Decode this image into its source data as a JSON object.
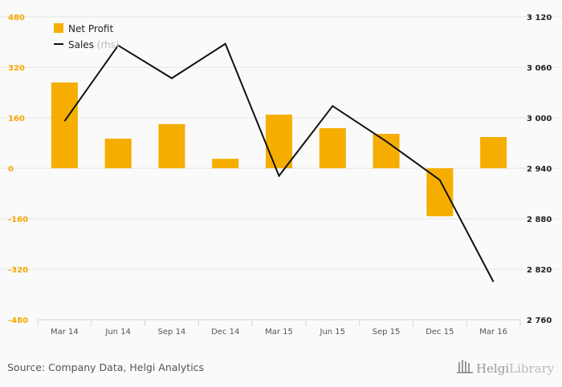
{
  "chart_data": {
    "type": "bar",
    "categories": [
      "Mar 14",
      "Jun 14",
      "Sep 14",
      "Dec 14",
      "Mar 15",
      "Jun 15",
      "Sep 15",
      "Dec 15",
      "Mar 16"
    ],
    "series": [
      {
        "name": "Net Profit",
        "type": "bar",
        "axis": "left",
        "color": "#f5ae00",
        "values": [
          272,
          94,
          140,
          30,
          170,
          127,
          109,
          -152,
          99
        ]
      },
      {
        "name": "Sales",
        "suffix": "(rhs)",
        "type": "line",
        "axis": "right",
        "color": "#111111",
        "values": [
          2996,
          3086,
          3047,
          3088,
          2931,
          3014,
          2972,
          2926,
          2805
        ]
      }
    ],
    "left_axis": {
      "range": [
        -480,
        480
      ],
      "ticks": [
        480,
        320,
        160,
        0,
        -160,
        -320,
        -480
      ],
      "labels": [
        "480",
        "320",
        "160",
        "0",
        "-160",
        "-320",
        "-480"
      ]
    },
    "right_axis": {
      "range": [
        2760,
        3120
      ],
      "ticks": [
        3120,
        3060,
        3000,
        2940,
        2880,
        2820,
        2760
      ],
      "labels": [
        "3 120",
        "3 060",
        "3 000",
        "2 940",
        "2 880",
        "2 820",
        "2 760"
      ]
    },
    "legend": "top-left",
    "grid": true
  },
  "footer": {
    "source": "Source: Company Data, Helgi Analytics",
    "logo": "HelgiLibrary"
  }
}
